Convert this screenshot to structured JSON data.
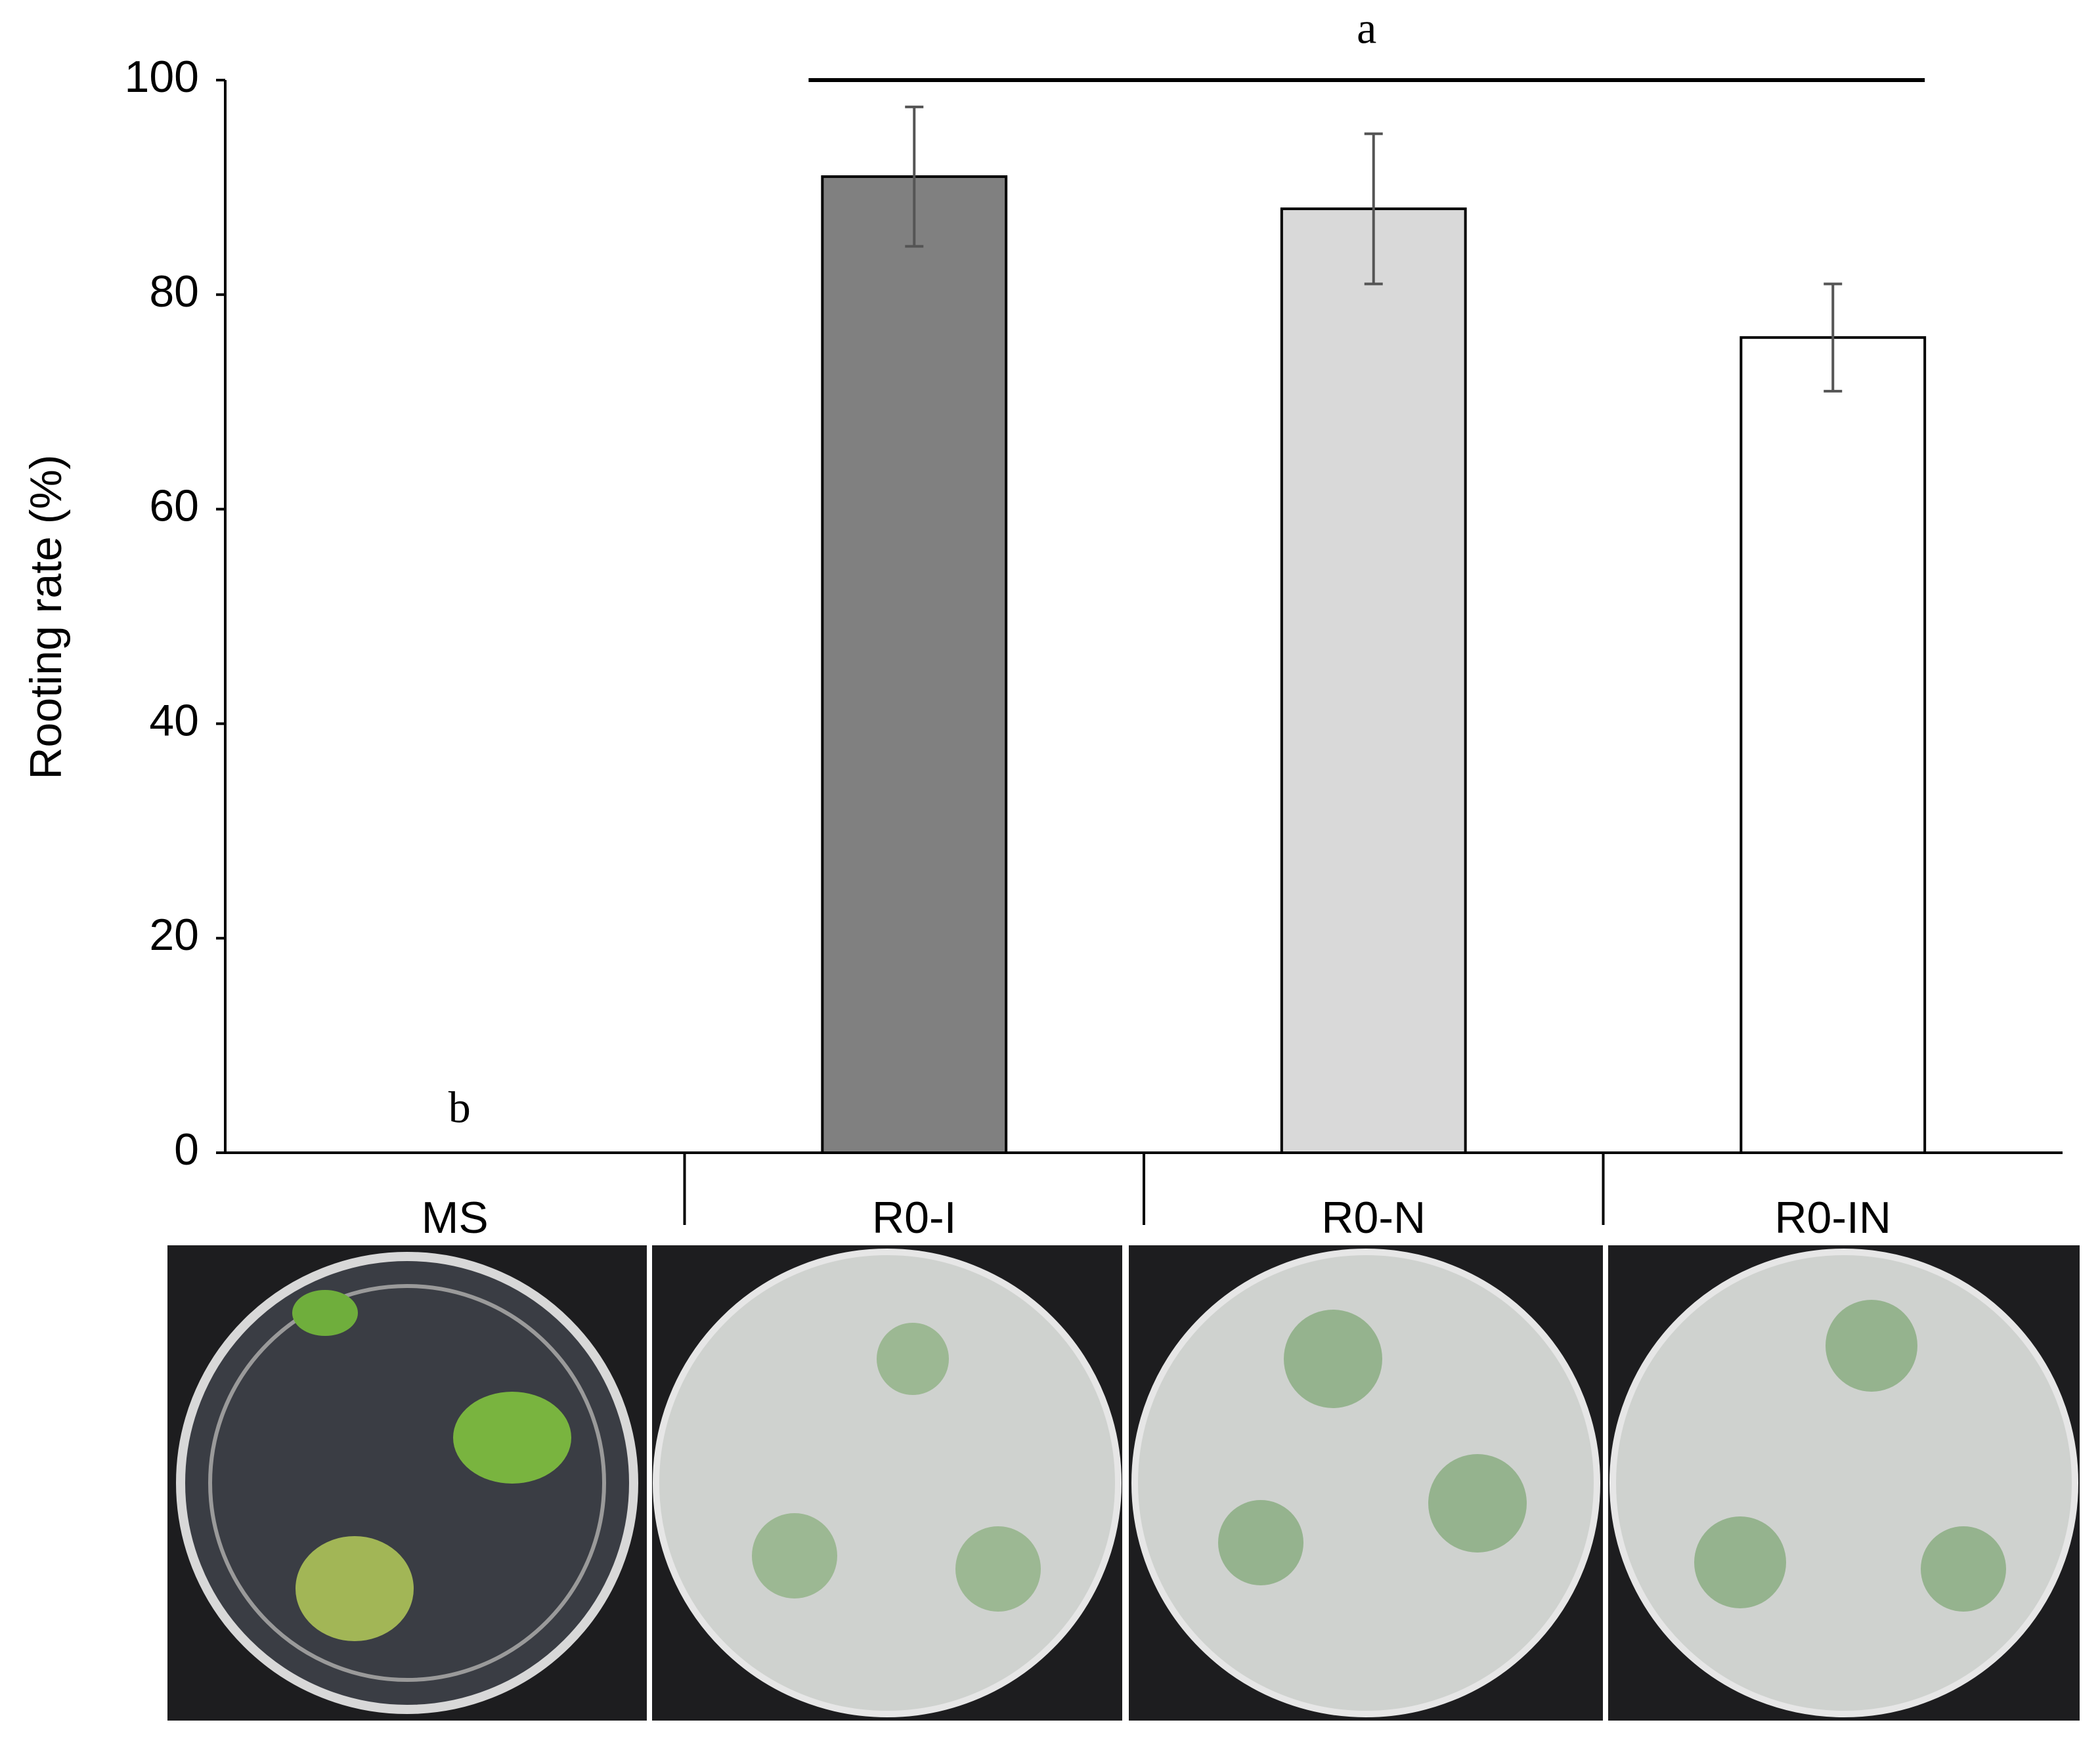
{
  "chart_data": {
    "type": "bar",
    "y_label": "Rooting rate (%)",
    "categories": [
      "MS",
      "R0-I",
      "R0-N",
      "R0-IN"
    ],
    "values": [
      0,
      91,
      88,
      76
    ],
    "errors": [
      null,
      6.5,
      7,
      5
    ],
    "colors": [
      "#ffffff",
      "#808080",
      "#d9d9d9",
      "#ffffff"
    ],
    "ylim": [
      0,
      100
    ],
    "yticks": [
      0,
      20,
      40,
      60,
      80,
      100
    ],
    "grid": false,
    "annotations": [
      "a",
      "b"
    ]
  }
}
